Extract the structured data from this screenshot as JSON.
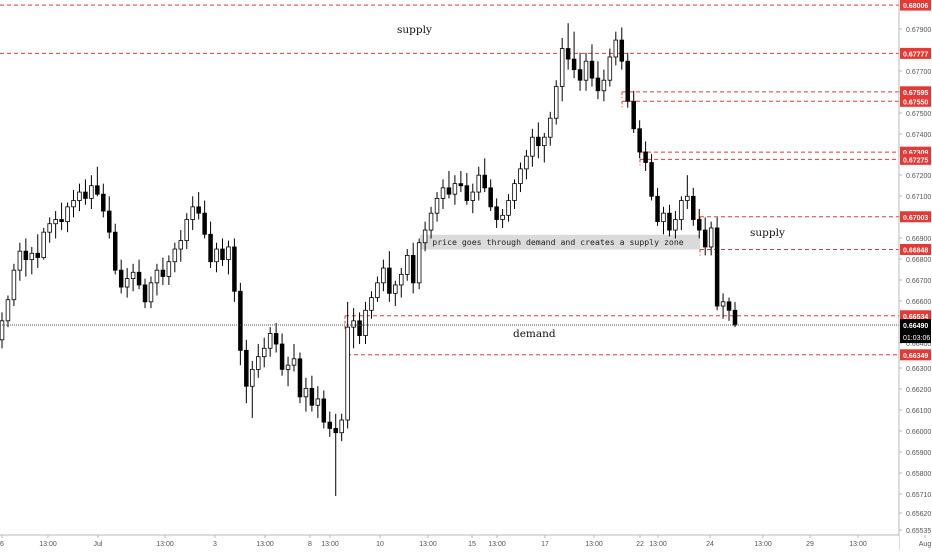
{
  "chart_data": {
    "type": "candlestick",
    "symbol_note": "",
    "price_axis": {
      "ylim": [
        0.655,
        0.6803
      ],
      "ticks": [
        "0.67900",
        "0.67800",
        "0.67700",
        "0.67600",
        "0.67500",
        "0.67400",
        "0.67300",
        "0.67200",
        "0.67100",
        "0.67000",
        "0.66900",
        "0.66800",
        "0.66700",
        "0.66600",
        "0.66500",
        "0.66400",
        "0.66300",
        "0.66200",
        "0.66100",
        "0.66000",
        "0.65900",
        "0.65800",
        "0.65710",
        "0.65620",
        "0.65535"
      ],
      "current_price": "0.66490",
      "countdown": "01:03:06"
    },
    "time_axis": {
      "labels": [
        "6",
        "13:00",
        "Jul",
        "13:00",
        "3",
        "13:00",
        "8",
        "13:00",
        "10",
        "13:00",
        "15",
        "13:00",
        "17",
        "13:00",
        "22",
        "13:00",
        "24",
        "13:00",
        "29",
        "13:00",
        "Aug"
      ]
    },
    "levels": [
      {
        "price": 0.68006,
        "label": "0.68006"
      },
      {
        "price": 0.67777,
        "label": "0.67777"
      },
      {
        "price": 0.67595,
        "label": "0.67595"
      },
      {
        "price": 0.6755,
        "label": "0.67550"
      },
      {
        "price": 0.67309,
        "label": "0.67309"
      },
      {
        "price": 0.67275,
        "label": "0.67275"
      },
      {
        "price": 0.67003,
        "label": "0.67003"
      },
      {
        "price": 0.66848,
        "label": "0.66848"
      },
      {
        "price": 0.66534,
        "label": "0.66534"
      },
      {
        "price": 0.66349,
        "label": "0.66349"
      }
    ],
    "annotations": {
      "supply_top": "supply",
      "supply_right": "supply",
      "demand": "demand",
      "zone_note": "price goes through demand and creates a supply zone"
    },
    "candles": [
      [
        0.6642,
        0.6655,
        0.6638,
        0.6651
      ],
      [
        0.6651,
        0.6663,
        0.6648,
        0.6661
      ],
      [
        0.6661,
        0.6678,
        0.6658,
        0.6675
      ],
      [
        0.6675,
        0.6688,
        0.667,
        0.6684
      ],
      [
        0.6684,
        0.669,
        0.6672,
        0.668
      ],
      [
        0.668,
        0.6686,
        0.6673,
        0.6683
      ],
      [
        0.6683,
        0.6692,
        0.6676,
        0.6681
      ],
      [
        0.6681,
        0.6695,
        0.668,
        0.6693
      ],
      [
        0.6693,
        0.67,
        0.6688,
        0.6697
      ],
      [
        0.6697,
        0.6703,
        0.669,
        0.6699
      ],
      [
        0.6699,
        0.6707,
        0.6694,
        0.6698
      ],
      [
        0.6698,
        0.6707,
        0.6693,
        0.6705
      ],
      [
        0.6705,
        0.6713,
        0.67,
        0.6708
      ],
      [
        0.6708,
        0.6716,
        0.6703,
        0.6712
      ],
      [
        0.6712,
        0.6718,
        0.6706,
        0.6709
      ],
      [
        0.6709,
        0.672,
        0.6704,
        0.6715
      ],
      [
        0.6715,
        0.6724,
        0.671,
        0.6711
      ],
      [
        0.6711,
        0.6716,
        0.67,
        0.6703
      ],
      [
        0.6703,
        0.671,
        0.669,
        0.6693
      ],
      [
        0.6693,
        0.6697,
        0.6673,
        0.6675
      ],
      [
        0.6675,
        0.668,
        0.6664,
        0.6667
      ],
      [
        0.6667,
        0.6676,
        0.6662,
        0.6671
      ],
      [
        0.6671,
        0.6678,
        0.6665,
        0.6674
      ],
      [
        0.6674,
        0.668,
        0.6666,
        0.6668
      ],
      [
        0.6668,
        0.6671,
        0.6657,
        0.666
      ],
      [
        0.666,
        0.6672,
        0.6657,
        0.6669
      ],
      [
        0.6669,
        0.6678,
        0.6663,
        0.6675
      ],
      [
        0.6675,
        0.6681,
        0.6668,
        0.6672
      ],
      [
        0.6672,
        0.6682,
        0.6668,
        0.6679
      ],
      [
        0.6679,
        0.6688,
        0.6674,
        0.6685
      ],
      [
        0.6685,
        0.6694,
        0.6679,
        0.6689
      ],
      [
        0.6689,
        0.6702,
        0.6685,
        0.6699
      ],
      [
        0.6699,
        0.671,
        0.6694,
        0.6705
      ],
      [
        0.6705,
        0.6712,
        0.6699,
        0.6702
      ],
      [
        0.6702,
        0.6708,
        0.669,
        0.6692
      ],
      [
        0.6692,
        0.6698,
        0.6676,
        0.6679
      ],
      [
        0.6679,
        0.6688,
        0.6674,
        0.6685
      ],
      [
        0.6685,
        0.669,
        0.6677,
        0.668
      ],
      [
        0.668,
        0.6689,
        0.6673,
        0.6686
      ],
      [
        0.6686,
        0.669,
        0.666,
        0.6665
      ],
      [
        0.6665,
        0.6669,
        0.663,
        0.6637
      ],
      [
        0.6637,
        0.6642,
        0.6612,
        0.662
      ],
      [
        0.662,
        0.6632,
        0.6605,
        0.6628
      ],
      [
        0.6628,
        0.664,
        0.6624,
        0.6634
      ],
      [
        0.6634,
        0.6643,
        0.6629,
        0.6638
      ],
      [
        0.6638,
        0.6648,
        0.6634,
        0.6645
      ],
      [
        0.6645,
        0.665,
        0.6636,
        0.664
      ],
      [
        0.664,
        0.6645,
        0.6625,
        0.6628
      ],
      [
        0.6628,
        0.6634,
        0.662,
        0.663
      ],
      [
        0.663,
        0.664,
        0.6627,
        0.6633
      ],
      [
        0.6633,
        0.6636,
        0.6612,
        0.6615
      ],
      [
        0.6615,
        0.6624,
        0.6608,
        0.6619
      ],
      [
        0.6619,
        0.6625,
        0.6608,
        0.6611
      ],
      [
        0.6611,
        0.662,
        0.6605,
        0.6614
      ],
      [
        0.6614,
        0.6618,
        0.66,
        0.6603
      ],
      [
        0.6603,
        0.6608,
        0.6596,
        0.66
      ],
      [
        0.66,
        0.6607,
        0.6568,
        0.6598
      ],
      [
        0.6598,
        0.6607,
        0.6594,
        0.6604
      ],
      [
        0.6604,
        0.666,
        0.66,
        0.6648
      ],
      [
        0.6648,
        0.6657,
        0.6638,
        0.6651
      ],
      [
        0.6651,
        0.6655,
        0.664,
        0.6644
      ],
      [
        0.6644,
        0.666,
        0.664,
        0.6656
      ],
      [
        0.6656,
        0.6665,
        0.6652,
        0.6662
      ],
      [
        0.6662,
        0.6672,
        0.666,
        0.6669
      ],
      [
        0.6669,
        0.668,
        0.6665,
        0.6676
      ],
      [
        0.6676,
        0.6684,
        0.666,
        0.6664
      ],
      [
        0.6664,
        0.667,
        0.6658,
        0.6668
      ],
      [
        0.6668,
        0.6676,
        0.6662,
        0.6673
      ],
      [
        0.6673,
        0.6685,
        0.667,
        0.6682
      ],
      [
        0.6682,
        0.6688,
        0.6664,
        0.6669
      ],
      [
        0.6669,
        0.669,
        0.6666,
        0.6688
      ],
      [
        0.6688,
        0.6698,
        0.6684,
        0.6694
      ],
      [
        0.6694,
        0.6705,
        0.669,
        0.6702
      ],
      [
        0.6702,
        0.6712,
        0.6698,
        0.6709
      ],
      [
        0.6709,
        0.6718,
        0.6704,
        0.6714
      ],
      [
        0.6714,
        0.6722,
        0.6709,
        0.6711
      ],
      [
        0.6711,
        0.672,
        0.6706,
        0.6716
      ],
      [
        0.6716,
        0.6722,
        0.6712,
        0.6715
      ],
      [
        0.6715,
        0.6721,
        0.6706,
        0.6708
      ],
      [
        0.6708,
        0.6716,
        0.6702,
        0.6712
      ],
      [
        0.6712,
        0.6724,
        0.6708,
        0.672
      ],
      [
        0.672,
        0.6728,
        0.6712,
        0.6714
      ],
      [
        0.6714,
        0.6718,
        0.6703,
        0.6705
      ],
      [
        0.6705,
        0.6709,
        0.6695,
        0.6699
      ],
      [
        0.6699,
        0.6704,
        0.6695,
        0.6701
      ],
      [
        0.6701,
        0.6711,
        0.6698,
        0.6708
      ],
      [
        0.6708,
        0.6718,
        0.6704,
        0.6716
      ],
      [
        0.6716,
        0.6726,
        0.6712,
        0.6723
      ],
      [
        0.6723,
        0.6732,
        0.6718,
        0.6729
      ],
      [
        0.6729,
        0.6742,
        0.6724,
        0.6738
      ],
      [
        0.6738,
        0.6745,
        0.6728,
        0.6734
      ],
      [
        0.6734,
        0.674,
        0.6726,
        0.6738
      ],
      [
        0.6738,
        0.675,
        0.6734,
        0.6747
      ],
      [
        0.6747,
        0.6765,
        0.6744,
        0.6762
      ],
      [
        0.6762,
        0.6785,
        0.6755,
        0.678
      ],
      [
        0.678,
        0.6792,
        0.677,
        0.6775
      ],
      [
        0.6775,
        0.6788,
        0.6766,
        0.677
      ],
      [
        0.677,
        0.6778,
        0.676,
        0.6765
      ],
      [
        0.6765,
        0.6778,
        0.676,
        0.6774
      ],
      [
        0.6774,
        0.6782,
        0.6762,
        0.6766
      ],
      [
        0.6766,
        0.6774,
        0.6756,
        0.676
      ],
      [
        0.676,
        0.677,
        0.6755,
        0.6765
      ],
      [
        0.6765,
        0.678,
        0.6762,
        0.6776
      ],
      [
        0.6776,
        0.6788,
        0.6772,
        0.6784
      ],
      [
        0.6784,
        0.679,
        0.677,
        0.6774
      ],
      [
        0.6774,
        0.6778,
        0.6752,
        0.6755
      ],
      [
        0.6755,
        0.676,
        0.674,
        0.6742
      ],
      [
        0.6742,
        0.6746,
        0.6728,
        0.6731
      ],
      [
        0.6731,
        0.6736,
        0.6722,
        0.6726
      ],
      [
        0.6726,
        0.673,
        0.6708,
        0.671
      ],
      [
        0.671,
        0.6714,
        0.6696,
        0.6698
      ],
      [
        0.6698,
        0.6705,
        0.6692,
        0.6702
      ],
      [
        0.6702,
        0.6706,
        0.6691,
        0.6694
      ],
      [
        0.6694,
        0.6703,
        0.669,
        0.6699
      ],
      [
        0.6699,
        0.671,
        0.6694,
        0.6708
      ],
      [
        0.6708,
        0.672,
        0.6704,
        0.671
      ],
      [
        0.671,
        0.6714,
        0.6696,
        0.6699
      ],
      [
        0.6699,
        0.6704,
        0.669,
        0.6694
      ],
      [
        0.6694,
        0.67,
        0.6682,
        0.6686
      ],
      [
        0.6686,
        0.6698,
        0.6682,
        0.6695
      ],
      [
        0.6695,
        0.67,
        0.6656,
        0.6658
      ],
      [
        0.6658,
        0.6664,
        0.6652,
        0.666
      ],
      [
        0.666,
        0.6662,
        0.6651,
        0.6656
      ],
      [
        0.6656,
        0.666,
        0.6648,
        0.6649
      ]
    ]
  }
}
